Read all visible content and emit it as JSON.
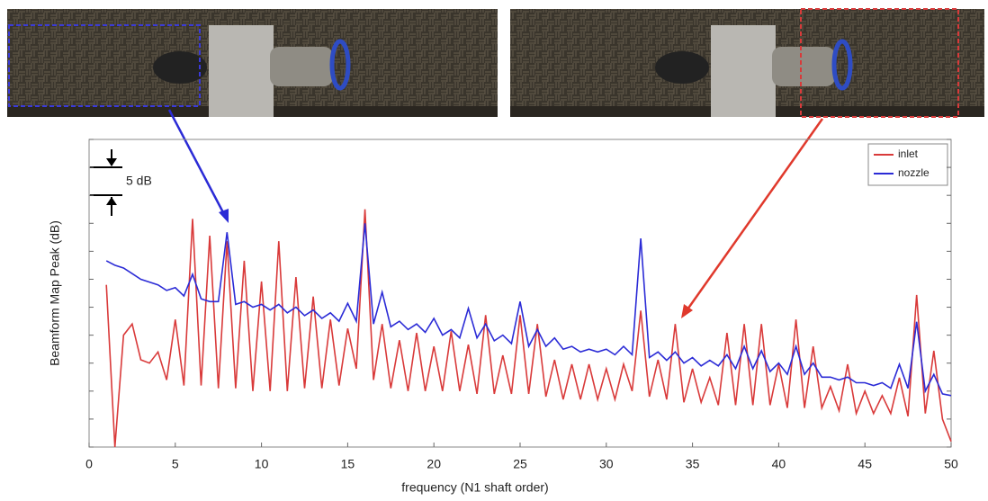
{
  "chart_data": {
    "type": "line",
    "xlabel": "frequency  (N1 shaft order)",
    "ylabel": "Beamform Map Peak (dB)",
    "annotation": "5 dB",
    "xlim": [
      0,
      50
    ],
    "xticks": [
      0,
      5,
      10,
      15,
      20,
      25,
      30,
      35,
      40,
      45,
      50
    ],
    "ylim": [
      0,
      55
    ],
    "yticks": [
      0,
      5,
      10,
      15,
      20,
      25,
      30,
      35,
      40,
      45,
      50,
      55
    ],
    "legend": "upper right",
    "x": [
      1,
      1.5,
      2,
      2.5,
      3,
      3.5,
      4,
      4.5,
      5,
      5.5,
      6,
      6.5,
      7,
      7.5,
      8,
      8.5,
      9,
      9.5,
      10,
      10.5,
      11,
      11.5,
      12,
      12.5,
      13,
      13.5,
      14,
      14.5,
      15,
      15.5,
      16,
      16.5,
      17,
      17.5,
      18,
      18.5,
      19,
      19.5,
      20,
      20.5,
      21,
      21.5,
      22,
      22.5,
      23,
      23.5,
      24,
      24.5,
      25,
      25.5,
      26,
      26.5,
      27,
      27.5,
      28,
      28.5,
      29,
      29.5,
      30,
      30.5,
      31,
      31.5,
      32,
      32.5,
      33,
      33.5,
      34,
      34.5,
      35,
      35.5,
      36,
      36.5,
      37,
      37.5,
      38,
      38.5,
      39,
      39.5,
      40,
      40.5,
      41,
      41.5,
      42,
      42.5,
      43,
      43.5,
      44,
      44.5,
      45,
      45.5,
      46,
      46.5,
      47,
      47.5,
      48,
      48.5,
      49,
      49.5,
      50
    ],
    "series": [
      {
        "name": "inlet",
        "color": "#d93a3a",
        "values": [
          29,
          0,
          20,
          22,
          15.6,
          15,
          17,
          12,
          22.8,
          11,
          40.8,
          11,
          37.8,
          10.5,
          36.8,
          10.5,
          33.3,
          10,
          29.6,
          10,
          36.8,
          10,
          30.4,
          10.5,
          26.9,
          10.5,
          22.8,
          11,
          21.2,
          14,
          42.5,
          12,
          22,
          10.5,
          19.1,
          10,
          20.4,
          10,
          18,
          10,
          20.7,
          10,
          18.3,
          9.5,
          23.6,
          9.5,
          16.4,
          9.5,
          23.6,
          9.5,
          22,
          9,
          15.6,
          8.5,
          14.8,
          8.5,
          14.8,
          8.5,
          14,
          8.5,
          14.8,
          10,
          24.4,
          9,
          15.6,
          8.5,
          22,
          8,
          14,
          8,
          12.4,
          7.5,
          20.4,
          7.5,
          22,
          7.5,
          22,
          7.5,
          14.8,
          7,
          22.8,
          7,
          18,
          7,
          10.8,
          6.5,
          14.8,
          6,
          10,
          6,
          9.2,
          6,
          12.4,
          5.5,
          27.2,
          6,
          17.2,
          5,
          1
        ]
      },
      {
        "name": "nozzle",
        "color": "#2b2bd6",
        "values": [
          33.3,
          32.5,
          32,
          31,
          30,
          29.5,
          29,
          28,
          28.5,
          27,
          30.9,
          26.5,
          26,
          26,
          38.4,
          25.5,
          26,
          25,
          25.5,
          24.5,
          25.5,
          24,
          25,
          23.5,
          24.5,
          23,
          24,
          22.5,
          25.7,
          22.5,
          40,
          22,
          27.7,
          21.5,
          22.5,
          21,
          22,
          20.5,
          23,
          20,
          21,
          19.5,
          24.8,
          19.5,
          22,
          19,
          20,
          18.5,
          26,
          18,
          21,
          18,
          19.5,
          17.5,
          18,
          17,
          17.5,
          17,
          17.5,
          16.5,
          18,
          16.5,
          37.3,
          16,
          17,
          15.5,
          17,
          15,
          16,
          14.5,
          15.5,
          14.5,
          16.5,
          14,
          18,
          14,
          17.2,
          13.5,
          15,
          13,
          18,
          13,
          15,
          12.5,
          12.5,
          12,
          12.5,
          11.5,
          11.5,
          11,
          11.5,
          10.5,
          14.8,
          10.5,
          22.4,
          10,
          13,
          9.5,
          9.2
        ]
      }
    ]
  }
}
